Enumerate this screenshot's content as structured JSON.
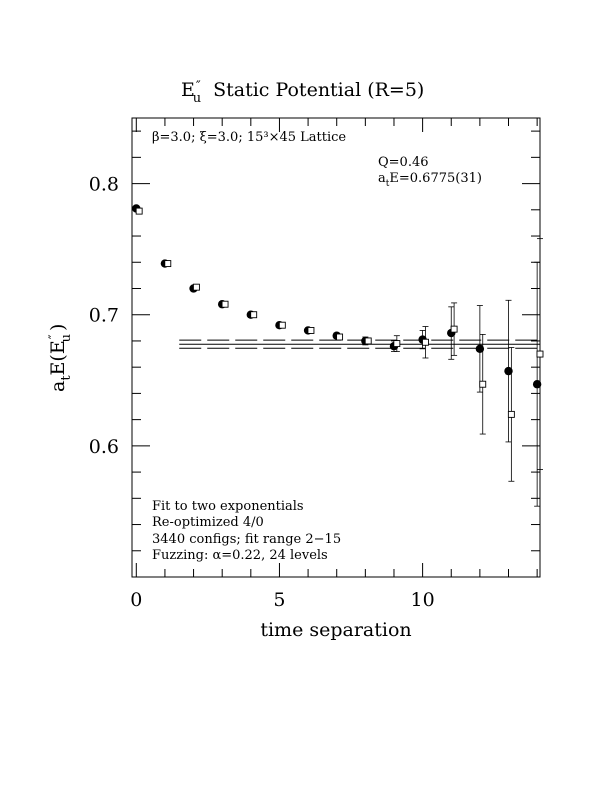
{
  "chart_data": {
    "type": "scatter",
    "title": "E″u Static Potential (R=5)",
    "title_parts": {
      "prefix": "E",
      "prime": "″",
      "sub": "u",
      "rest": "Static Potential (R=5)"
    },
    "xlabel": "time separation",
    "ylabel_parts": {
      "a": "a",
      "sub_t": "t",
      "mid": "E(E",
      "prime": "″",
      "sub_u": "u",
      "close": ")"
    },
    "xlim": [
      -0.15,
      14.1
    ],
    "ylim": [
      0.5,
      0.85
    ],
    "x_ticks": [
      0,
      5,
      10
    ],
    "x_tick_labels": [
      "0",
      "5",
      "10"
    ],
    "y_ticks": [
      0.6,
      0.7,
      0.8
    ],
    "y_tick_labels": [
      "0.6",
      "0.7",
      "0.8"
    ],
    "annotations": {
      "lattice": "β=3.0; ξ=3.0; 15³×45 Lattice",
      "q_value": "Q=0.46",
      "energy": {
        "a": "a",
        "sub": "t",
        "rest": "E=0.6775(31)"
      },
      "notes": [
        "Fit to two exponentials",
        "Re-optimized 4/0",
        "3440 configs; fit range 2−15",
        "Fuzzing: α=0.22, 24 levels"
      ]
    },
    "fit": {
      "value": 0.6775,
      "error": 0.0031,
      "x_start": 1.5,
      "x_end": 14.1
    },
    "series": [
      {
        "marker": "filled-circle",
        "x": [
          0,
          1,
          2,
          3,
          4,
          5,
          6,
          7,
          8,
          9,
          10,
          11,
          12,
          13,
          14
        ],
        "y": [
          0.781,
          0.739,
          0.72,
          0.708,
          0.7,
          0.692,
          0.688,
          0.684,
          0.68,
          0.676,
          0.681,
          0.686,
          0.674,
          0.657,
          0.647
        ],
        "err": [
          0.001,
          0.001,
          0.001,
          0.001,
          0.001,
          0.001,
          0.002,
          0.002,
          0.003,
          0.004,
          0.007,
          0.02,
          0.033,
          0.054,
          0.093
        ]
      },
      {
        "marker": "open-square",
        "x": [
          0.1,
          1.1,
          2.1,
          3.1,
          4.1,
          5.1,
          6.1,
          7.1,
          8.1,
          9.1,
          10.1,
          11.1,
          12.1,
          13.1,
          14.1
        ],
        "y": [
          0.779,
          0.739,
          0.721,
          0.708,
          0.7,
          0.692,
          0.688,
          0.683,
          0.68,
          0.678,
          0.679,
          0.689,
          0.647,
          0.624,
          0.67
        ],
        "err": [
          0.001,
          0.001,
          0.001,
          0.001,
          0.001,
          0.001,
          0.001,
          0.002,
          0.002,
          0.006,
          0.012,
          0.02,
          0.038,
          0.051,
          0.088
        ]
      }
    ]
  }
}
